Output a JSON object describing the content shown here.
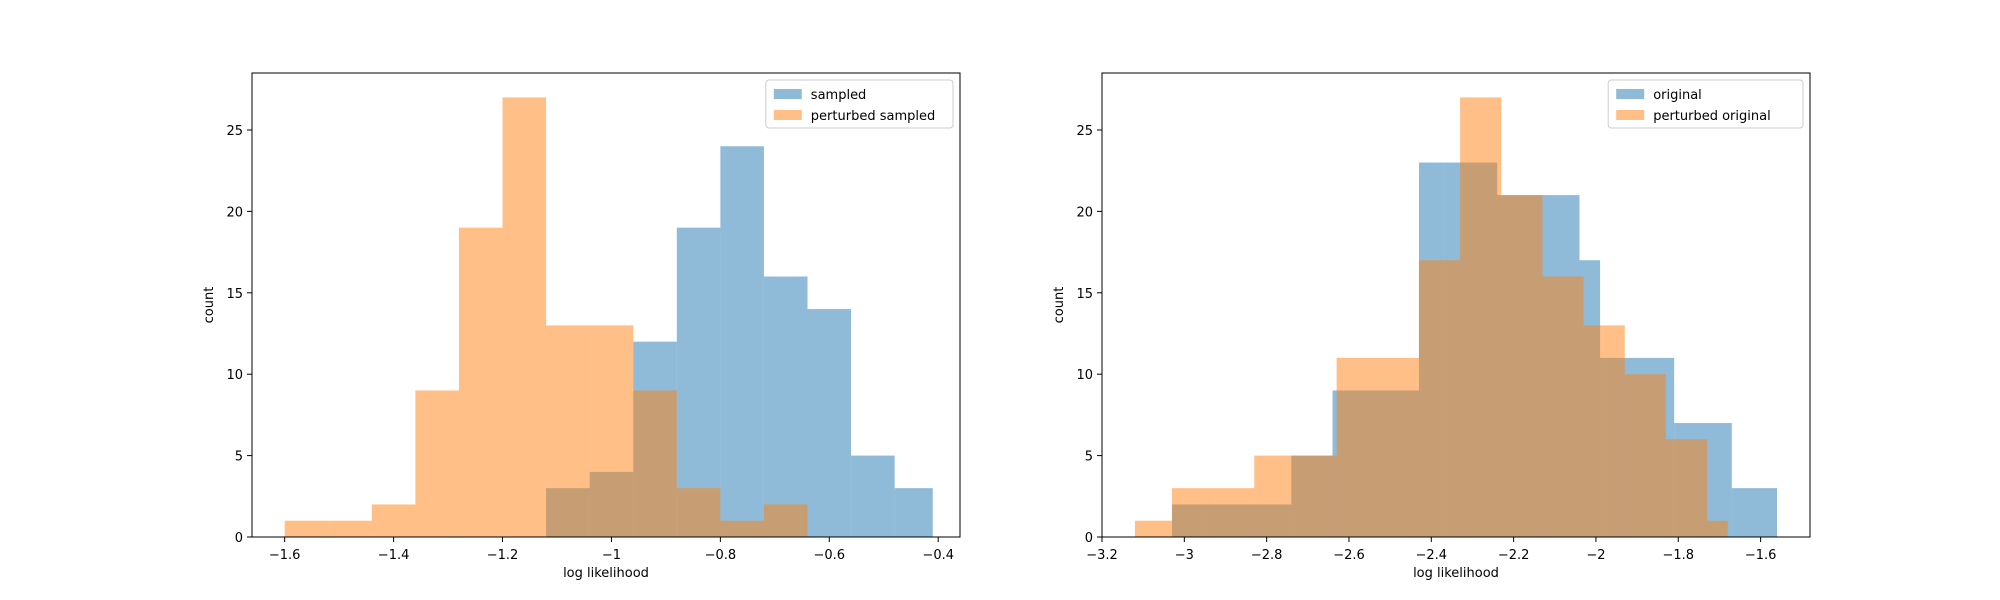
{
  "colors": {
    "series1": "#1f77b4",
    "series2": "#ff7f0e",
    "axis": "#000000"
  },
  "chart_data": [
    {
      "type": "bar",
      "histogram": true,
      "xlabel": "log likelihood",
      "ylabel": "count",
      "xlim": [
        -1.66,
        -0.36
      ],
      "ylim": [
        0,
        28.5
      ],
      "xticks": [
        -1.6,
        -1.4,
        -1.2,
        -1.0,
        -0.8,
        -0.6,
        -0.4
      ],
      "yticks": [
        0,
        5,
        10,
        15,
        20,
        25
      ],
      "legend_position": "top-right",
      "series": [
        {
          "name": "sampled",
          "color": "#1f77b4",
          "alpha": 0.5,
          "bin_edges": [
            -1.12,
            -1.04,
            -0.96,
            -0.88,
            -0.8,
            -0.72,
            -0.64,
            -0.56,
            -0.48,
            -0.41
          ],
          "counts": [
            3,
            4,
            12,
            19,
            24,
            16,
            14,
            5,
            3
          ]
        },
        {
          "name": "perturbed sampled",
          "color": "#ff7f0e",
          "alpha": 0.5,
          "bin_edges": [
            -1.6,
            -1.52,
            -1.44,
            -1.36,
            -1.28,
            -1.2,
            -1.12,
            -1.04,
            -0.96,
            -0.88,
            -0.8,
            -0.72,
            -0.64
          ],
          "counts": [
            1,
            1,
            2,
            9,
            19,
            27,
            13,
            13,
            9,
            3,
            1,
            2
          ]
        }
      ]
    },
    {
      "type": "bar",
      "histogram": true,
      "xlabel": "log likelihood",
      "ylabel": "count",
      "xlim": [
        -3.2,
        -1.48
      ],
      "ylim": [
        0,
        28.5
      ],
      "xticks": [
        -3.2,
        -3.0,
        -2.8,
        -2.6,
        -2.4,
        -2.2,
        -2.0,
        -1.8,
        -1.6
      ],
      "yticks": [
        0,
        5,
        10,
        15,
        20,
        25
      ],
      "legend_position": "top-right",
      "series": [
        {
          "name": "original",
          "color": "#1f77b4",
          "alpha": 0.5,
          "bin_edges": [
            -3.03,
            -2.95,
            -2.74,
            -2.64,
            -2.43,
            -2.37,
            -2.24,
            -2.04,
            -1.99,
            -1.81,
            -1.67,
            -1.56
          ],
          "counts": [
            2,
            2,
            5,
            9,
            23,
            23,
            21,
            17,
            11,
            7,
            3
          ]
        },
        {
          "name": "perturbed original",
          "color": "#ff7f0e",
          "alpha": 0.5,
          "bin_edges": [
            -3.12,
            -3.03,
            -2.93,
            -2.83,
            -2.73,
            -2.63,
            -2.53,
            -2.43,
            -2.33,
            -2.23,
            -2.13,
            -2.03,
            -1.93,
            -1.83,
            -1.73,
            -1.68
          ],
          "counts": [
            1,
            3,
            3,
            5,
            5,
            11,
            11,
            17,
            27,
            21,
            16,
            13,
            10,
            6,
            1
          ]
        }
      ]
    }
  ]
}
